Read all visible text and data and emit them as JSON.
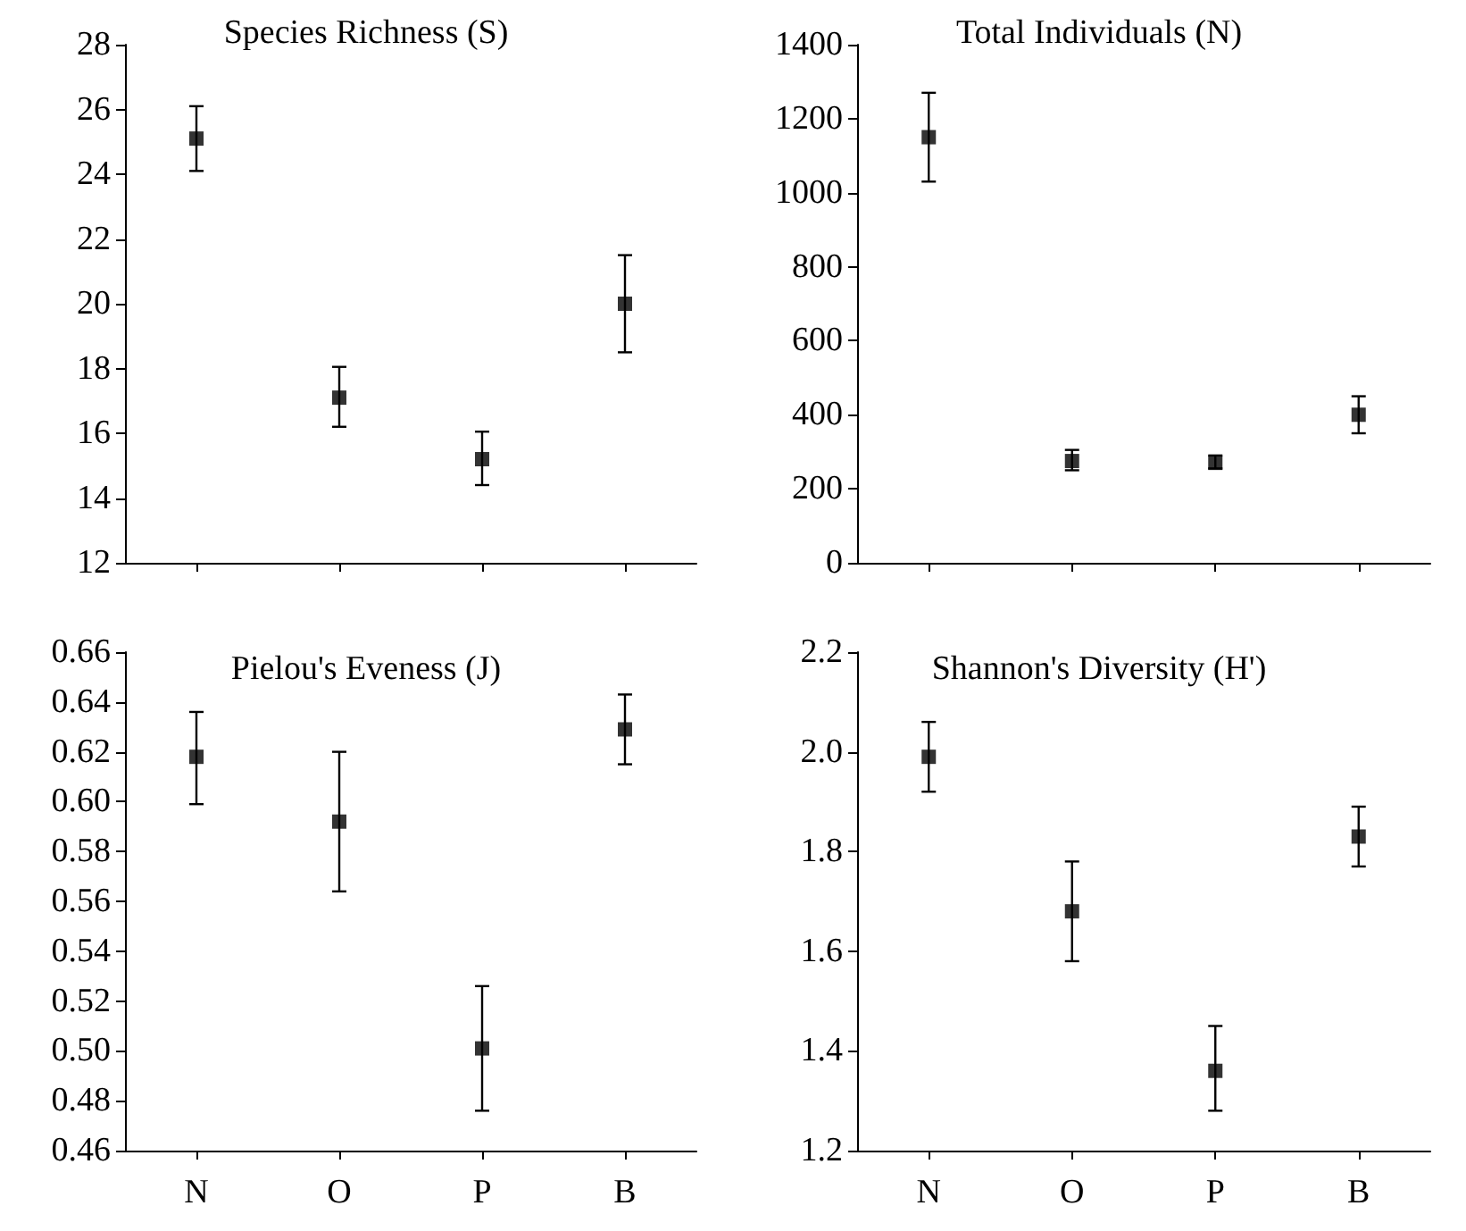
{
  "chart_data": [
    {
      "type": "scatter",
      "title": "Species Richness (S)",
      "categories": [
        null,
        null,
        null,
        null
      ],
      "tick_labels": "y",
      "marker": "square",
      "color": "#000000",
      "values": [
        25.1,
        17.1,
        15.2,
        20.0
      ],
      "errors": [
        [
          24.1,
          26.1
        ],
        [
          16.2,
          18.05
        ],
        [
          14.4,
          16.05
        ],
        [
          18.5,
          21.5
        ]
      ],
      "ylim": [
        12,
        28
      ],
      "yticks": [
        12,
        14,
        16,
        18,
        20,
        22,
        24,
        26,
        28
      ]
    },
    {
      "type": "scatter",
      "title": "Total Individuals (N)",
      "categories": [
        null,
        null,
        null,
        null
      ],
      "tick_labels": "y",
      "marker": "square",
      "color": "#000000",
      "values": [
        1150,
        275,
        270,
        400
      ],
      "errors": [
        [
          1030,
          1270
        ],
        [
          250,
          305
        ],
        [
          255,
          290
        ],
        [
          350,
          450
        ]
      ],
      "ylim": [
        0,
        1400
      ],
      "yticks": [
        0,
        200,
        400,
        600,
        800,
        1000,
        1200,
        1400
      ]
    },
    {
      "type": "scatter",
      "title": "Pielou's Eveness (J)",
      "categories": [
        "N",
        "O",
        "P",
        "B"
      ],
      "marker": "square",
      "color": "#000000",
      "values": [
        0.618,
        0.592,
        0.501,
        0.629
      ],
      "errors": [
        [
          0.599,
          0.636
        ],
        [
          0.564,
          0.62
        ],
        [
          0.476,
          0.526
        ],
        [
          0.615,
          0.643
        ]
      ],
      "ylim": [
        0.46,
        0.66
      ],
      "yticks": [
        0.46,
        0.48,
        {
          "value": 0.5,
          "label": "0.50"
        },
        0.52,
        0.54,
        0.56,
        0.58,
        {
          "value": 0.6,
          "label": "0.60"
        },
        0.62,
        0.64,
        0.66
      ]
    },
    {
      "type": "scatter",
      "title": "Shannon's Diversity (H')",
      "categories": [
        "N",
        "O",
        "P",
        "B"
      ],
      "marker": "square",
      "color": "#000000",
      "values": [
        1.99,
        1.68,
        1.36,
        1.83
      ],
      "errors": [
        [
          1.92,
          2.06
        ],
        [
          1.58,
          1.78
        ],
        [
          1.28,
          1.45
        ],
        [
          1.77,
          1.89
        ]
      ],
      "ylim": [
        1.2,
        2.2
      ],
      "yticks": [
        1.2,
        1.4,
        1.6,
        1.8,
        {
          "value": 2,
          "label": "2.0"
        },
        2.2
      ]
    }
  ]
}
